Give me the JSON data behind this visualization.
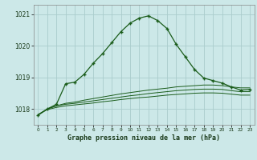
{
  "bg_color": "#cce8e8",
  "grid_color": "#aacccc",
  "line_color": "#1a5c1a",
  "title": "Graphe pression niveau de la mer (hPa)",
  "xlim": [
    -0.5,
    23.5
  ],
  "ylim": [
    1017.5,
    1021.3
  ],
  "yticks": [
    1018,
    1019,
    1020,
    1021
  ],
  "xticks": [
    0,
    1,
    2,
    3,
    4,
    5,
    6,
    7,
    8,
    9,
    10,
    11,
    12,
    13,
    14,
    15,
    16,
    17,
    18,
    19,
    20,
    21,
    22,
    23
  ],
  "main_line": {
    "x": [
      0,
      1,
      2,
      3,
      4,
      5,
      6,
      7,
      8,
      9,
      10,
      11,
      12,
      13,
      14,
      15,
      16,
      17,
      18,
      19,
      20,
      21,
      22,
      23
    ],
    "y": [
      1017.8,
      1018.0,
      1018.15,
      1018.8,
      1018.85,
      1019.1,
      1019.45,
      1019.75,
      1020.1,
      1020.45,
      1020.72,
      1020.88,
      1020.95,
      1020.8,
      1020.55,
      1020.05,
      1019.65,
      1019.25,
      1018.98,
      1018.9,
      1018.82,
      1018.7,
      1018.6,
      1018.62
    ]
  },
  "flat_lines": [
    {
      "x": [
        0,
        1,
        2,
        3,
        4,
        5,
        6,
        7,
        8,
        9,
        10,
        11,
        12,
        13,
        14,
        15,
        16,
        17,
        18,
        19,
        20,
        21,
        22,
        23
      ],
      "y": [
        1017.82,
        1018.0,
        1018.1,
        1018.18,
        1018.22,
        1018.28,
        1018.33,
        1018.38,
        1018.43,
        1018.48,
        1018.52,
        1018.56,
        1018.6,
        1018.63,
        1018.66,
        1018.7,
        1018.72,
        1018.74,
        1018.76,
        1018.76,
        1018.74,
        1018.7,
        1018.67,
        1018.67
      ]
    },
    {
      "x": [
        0,
        1,
        2,
        3,
        4,
        5,
        6,
        7,
        8,
        9,
        10,
        11,
        12,
        13,
        14,
        15,
        16,
        17,
        18,
        19,
        20,
        21,
        22,
        23
      ],
      "y": [
        1017.82,
        1018.0,
        1018.1,
        1018.15,
        1018.18,
        1018.22,
        1018.26,
        1018.3,
        1018.34,
        1018.38,
        1018.42,
        1018.45,
        1018.49,
        1018.52,
        1018.55,
        1018.58,
        1018.6,
        1018.62,
        1018.63,
        1018.63,
        1018.62,
        1018.58,
        1018.55,
        1018.55
      ]
    },
    {
      "x": [
        0,
        1,
        2,
        3,
        4,
        5,
        6,
        7,
        8,
        9,
        10,
        11,
        12,
        13,
        14,
        15,
        16,
        17,
        18,
        19,
        20,
        21,
        22,
        23
      ],
      "y": [
        1017.82,
        1017.98,
        1018.05,
        1018.1,
        1018.13,
        1018.16,
        1018.19,
        1018.23,
        1018.26,
        1018.3,
        1018.33,
        1018.36,
        1018.38,
        1018.41,
        1018.44,
        1018.46,
        1018.48,
        1018.5,
        1018.51,
        1018.51,
        1018.5,
        1018.47,
        1018.44,
        1018.44
      ]
    }
  ]
}
